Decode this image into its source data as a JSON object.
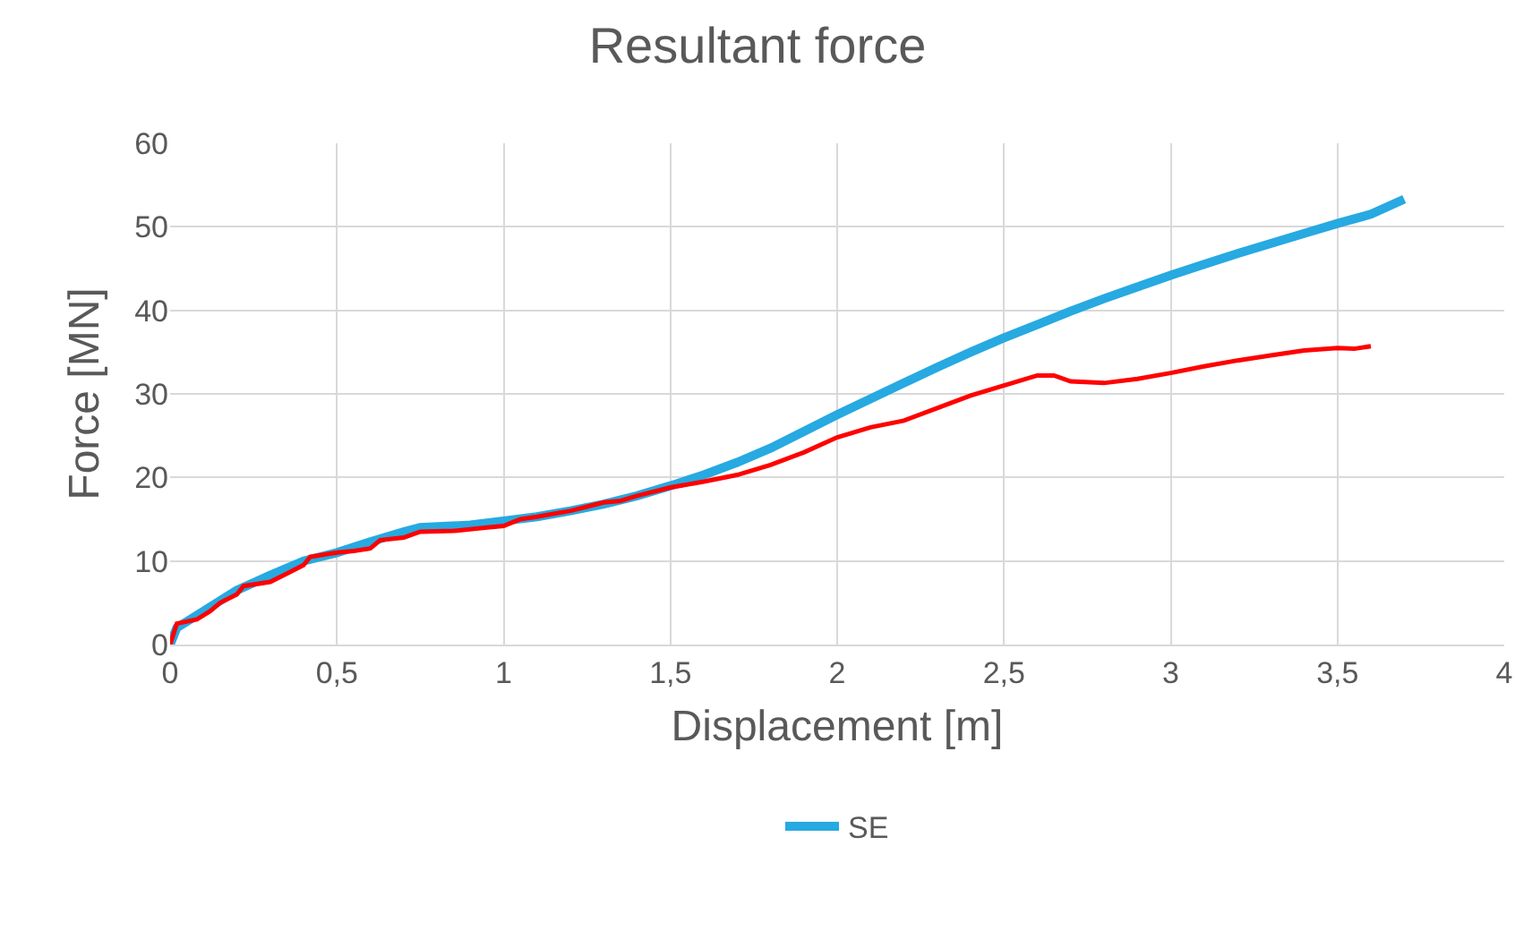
{
  "chart_data": {
    "type": "line",
    "title": "Resultant force",
    "xlabel": "Displacement [m]",
    "ylabel": "Force [MN]",
    "xlim": [
      0,
      4
    ],
    "xticks": [
      {
        "value": 0,
        "label": "0"
      },
      {
        "value": 0.5,
        "label": "0,5"
      },
      {
        "value": 1,
        "label": "1"
      },
      {
        "value": 1.5,
        "label": "1,5"
      },
      {
        "value": 2,
        "label": "2"
      },
      {
        "value": 2.5,
        "label": "2,5"
      },
      {
        "value": 3,
        "label": "3"
      },
      {
        "value": 3.5,
        "label": "3,5"
      },
      {
        "value": 4,
        "label": "4"
      }
    ],
    "ylim": [
      0,
      60
    ],
    "yticks": [
      0,
      10,
      20,
      30,
      40,
      50,
      60
    ],
    "grid": true,
    "legend": "bottom",
    "marker": "none",
    "line_style": "solid",
    "series": [
      {
        "name": "SE",
        "color": "#27a9e1",
        "x": [
          0,
          0.02,
          0.1,
          0.2,
          0.3,
          0.4,
          0.5,
          0.6,
          0.7,
          0.75,
          0.9,
          1.0,
          1.1,
          1.2,
          1.3,
          1.4,
          1.5,
          1.6,
          1.7,
          1.8,
          1.9,
          2.0,
          2.1,
          2.2,
          2.3,
          2.4,
          2.5,
          2.6,
          2.7,
          2.8,
          2.9,
          3.0,
          3.1,
          3.2,
          3.3,
          3.4,
          3.5,
          3.6,
          3.7
        ],
        "values": [
          0,
          2,
          4,
          6.5,
          8.3,
          10,
          11,
          12.3,
          13.5,
          14,
          14.3,
          14.8,
          15.3,
          16,
          16.8,
          17.8,
          19,
          20.3,
          21.8,
          23.5,
          25.5,
          27.5,
          29.4,
          31.3,
          33.2,
          35,
          36.7,
          38.3,
          39.9,
          41.4,
          42.8,
          44.2,
          45.5,
          46.8,
          48,
          49.2,
          50.4,
          51.5,
          53.3
        ]
      },
      {
        "color": "#ff0000",
        "x": [
          0,
          0.02,
          0.08,
          0.12,
          0.15,
          0.2,
          0.22,
          0.3,
          0.35,
          0.4,
          0.42,
          0.5,
          0.55,
          0.6,
          0.63,
          0.7,
          0.75,
          0.85,
          0.95,
          1.0,
          1.05,
          1.1,
          1.2,
          1.25,
          1.3,
          1.35,
          1.4,
          1.5,
          1.6,
          1.7,
          1.8,
          1.9,
          2.0,
          2.1,
          2.2,
          2.3,
          2.4,
          2.5,
          2.6,
          2.65,
          2.7,
          2.8,
          2.9,
          3.0,
          3.1,
          3.2,
          3.3,
          3.4,
          3.5,
          3.55,
          3.6
        ],
        "values": [
          0,
          2.5,
          3,
          4,
          5,
          6,
          7,
          7.5,
          8.5,
          9.5,
          10.5,
          11,
          11.2,
          11.5,
          12.5,
          12.8,
          13.5,
          13.6,
          14,
          14.2,
          15,
          15.3,
          16,
          16.5,
          17,
          17.2,
          17.8,
          18.8,
          19.5,
          20.3,
          21.5,
          23,
          24.8,
          26,
          26.8,
          28.3,
          29.8,
          31,
          32.2,
          32.2,
          31.5,
          31.3,
          31.8,
          32.5,
          33.3,
          34,
          34.6,
          35.2,
          35.5,
          35.4,
          35.7
        ]
      }
    ]
  }
}
